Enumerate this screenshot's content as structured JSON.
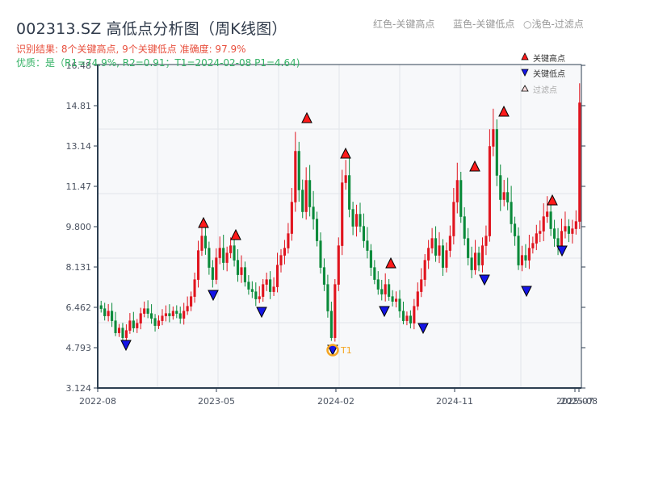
{
  "header": {
    "title": "002313.SZ 高低点分析图（周K线图）",
    "result_line": "识别结果: 8个关键高点, 9个关键低点  准确度: 97.9%",
    "quality_line": "优质：是（R1=74.9%, R2=0.91；T1=2024-02-08 P1=4.64)",
    "legend_top": {
      "red": "红色-关键高点",
      "blue": "蓝色-关键低点",
      "light": "○浅色-过滤点"
    }
  },
  "colors": {
    "up": "#e0141e",
    "down": "#0a8a3a",
    "key_high": "#ff1a1a",
    "key_low": "#1414e6",
    "t1_ring": "#f5a623",
    "axis": "#2c3e50",
    "grid": "#e2e5ea",
    "plot_bg": "#f7f8fa"
  },
  "chart_data": {
    "type": "candlestick",
    "title": "002313.SZ 高低点分析图（周K线图）",
    "xlabel": "",
    "ylabel": "",
    "ylim": [
      3.124,
      16.48
    ],
    "y_ticks": [
      "3.124",
      "4.793",
      "6.462",
      "8.131",
      "9.800",
      "11.47",
      "13.14",
      "14.81",
      "16.48"
    ],
    "x_ticks": [
      "2022-08",
      "2023-05",
      "2024-02",
      "2024-11",
      "2025-07",
      "2025-08"
    ],
    "grid": true,
    "legend": {
      "position": "top-right",
      "entries": [
        {
          "label": "关键高点",
          "marker": "red-triangle-up"
        },
        {
          "label": "关键低点",
          "marker": "blue-triangle-down"
        },
        {
          "label": "过滤点",
          "marker": "light-triangle-up"
        }
      ]
    },
    "key_highs": [
      {
        "date": "2023-04",
        "price": 9.9
      },
      {
        "date": "2023-06",
        "price": 9.5
      },
      {
        "date": "2023-12",
        "price": 14.4
      },
      {
        "date": "2024-03",
        "price": 12.9
      },
      {
        "date": "2024-07",
        "price": 8.3
      },
      {
        "date": "2024-12",
        "price": 12.3
      },
      {
        "date": "2025-03",
        "price": 14.6
      },
      {
        "date": "2025-06",
        "price": 10.3
      }
    ],
    "key_lows": [
      {
        "date": "2022-10",
        "price": 4.9
      },
      {
        "date": "2023-05",
        "price": 6.9
      },
      {
        "date": "2023-08",
        "price": 6.2
      },
      {
        "date": "2024-02",
        "price": 4.64,
        "annotation": "T1"
      },
      {
        "date": "2024-07",
        "price": 6.2
      },
      {
        "date": "2024-09",
        "price": 5.6
      },
      {
        "date": "2025-01",
        "price": 7.2
      },
      {
        "date": "2025-05",
        "price": 6.9
      },
      {
        "date": "2025-07",
        "price": 8.7
      }
    ],
    "annotations": [
      {
        "text": "T1",
        "date": "2024-02-08",
        "price": 4.64
      }
    ],
    "approx_weekly_close": [
      6.4,
      6.1,
      6.3,
      5.9,
      5.4,
      5.6,
      5.2,
      5.5,
      5.9,
      5.6,
      5.8,
      6.2,
      6.4,
      6.2,
      6.0,
      5.7,
      5.9,
      6.1,
      6.2,
      6.1,
      6.3,
      6.2,
      6.0,
      6.3,
      6.5,
      6.9,
      7.6,
      8.8,
      9.4,
      8.9,
      8.1,
      7.6,
      8.5,
      8.9,
      8.3,
      8.7,
      9.0,
      8.4,
      7.8,
      8.1,
      7.5,
      7.2,
      7.1,
      6.8,
      6.9,
      7.4,
      7.6,
      7.1,
      7.3,
      8.2,
      8.6,
      8.9,
      9.5,
      10.8,
      12.9,
      11.3,
      10.4,
      11.7,
      10.6,
      10.1,
      9.2,
      8.1,
      7.4,
      6.3,
      5.2,
      7.4,
      9.0,
      11.6,
      11.9,
      10.5,
      9.8,
      10.3,
      9.8,
      9.2,
      8.8,
      8.1,
      7.6,
      7.2,
      7.0,
      7.4,
      6.9,
      6.7,
      6.8,
      6.3,
      5.9,
      6.1,
      5.8,
      6.5,
      7.1,
      7.6,
      8.4,
      8.9,
      9.3,
      8.6,
      9.0,
      8.1,
      8.8,
      9.4,
      10.8,
      11.7,
      10.2,
      9.3,
      8.5,
      8.0,
      8.7,
      8.2,
      9.0,
      9.4,
      13.1,
      13.8,
      11.9,
      10.9,
      11.2,
      10.8,
      9.9,
      9.4,
      8.2,
      8.6,
      8.4,
      8.9,
      9.1,
      9.5,
      9.6,
      10.2,
      10.4,
      9.7,
      9.3,
      9.0,
      9.6,
      9.8,
      9.5,
      9.7,
      10.0,
      14.9
    ]
  }
}
